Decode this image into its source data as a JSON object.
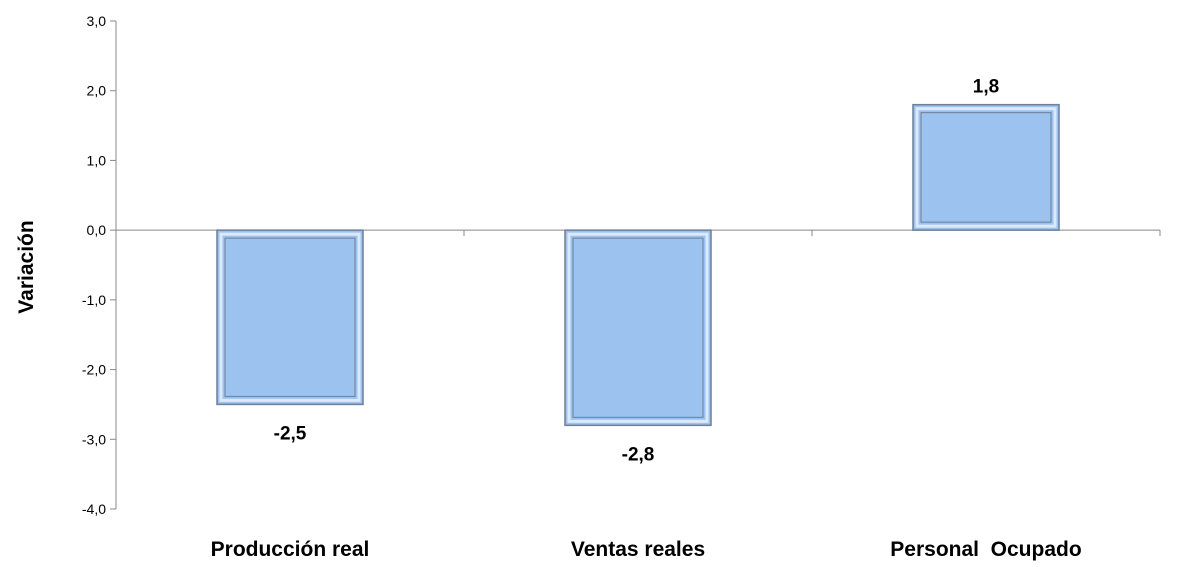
{
  "chart_data": {
    "type": "bar",
    "categories": [
      "Producción real",
      "Ventas reales",
      "Personal  Ocupado"
    ],
    "values": [
      -2.5,
      -2.8,
      1.8
    ],
    "data_labels": [
      "-2,5",
      "-2,8",
      "1,8"
    ],
    "title": "",
    "xlabel": "",
    "ylabel": "Variación",
    "ylim": [
      -4.0,
      3.0
    ],
    "yticks": [
      3.0,
      2.0,
      1.0,
      0.0,
      -1.0,
      -2.0,
      -3.0,
      -4.0
    ],
    "ytick_labels": [
      "3,0",
      "2,0",
      "1,0",
      "0,0",
      "-1,0",
      "-2,0",
      "-3,0",
      "-4,0"
    ],
    "grid": false,
    "legend": "none",
    "colors": {
      "bar_fill": "#9cc3f0",
      "bar_edge_light": "#dbe9fa",
      "bar_edge_dark": "#6e7f96",
      "axis": "#888888"
    }
  }
}
